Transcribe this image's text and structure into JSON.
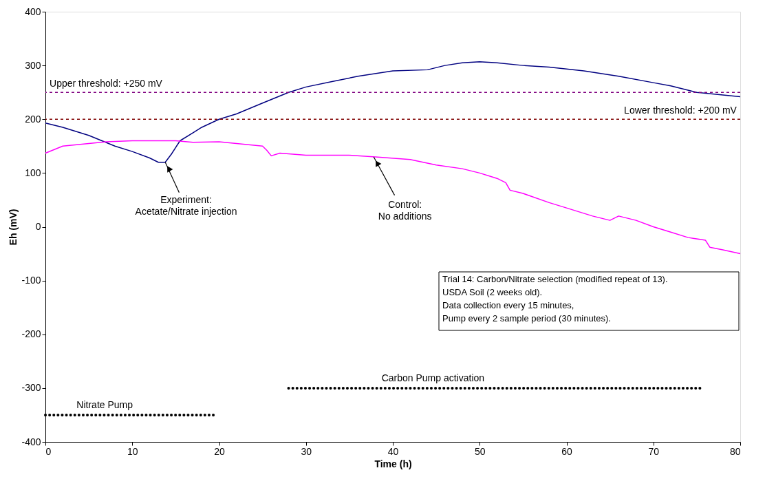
{
  "chart_data": {
    "type": "line",
    "xlabel": "Time (h)",
    "ylabel": "Eh (mV)",
    "xlim": [
      0,
      80
    ],
    "xticks": [
      0,
      10,
      20,
      30,
      40,
      50,
      60,
      70,
      80
    ],
    "ylim": [
      -400,
      400
    ],
    "yticks": [
      -400,
      -300,
      -200,
      -100,
      0,
      100,
      200,
      300,
      400
    ],
    "grid": false,
    "legend": false,
    "line_style": "solid",
    "marker": "none",
    "series": [
      {
        "color": "#000080",
        "x": [
          0,
          2,
          5,
          8,
          10,
          12,
          13,
          13.8,
          14.5,
          15.5,
          17,
          18,
          20,
          22,
          25,
          28,
          30,
          33,
          36,
          40,
          44,
          46,
          48,
          50,
          52,
          55,
          58,
          62,
          66,
          70,
          72,
          75,
          78,
          80
        ],
        "values": [
          193,
          185,
          170,
          150,
          140,
          128,
          120,
          120,
          135,
          160,
          175,
          185,
          200,
          210,
          230,
          250,
          260,
          270,
          280,
          290,
          292,
          300,
          305,
          307,
          305,
          300,
          297,
          290,
          280,
          268,
          262,
          250,
          245,
          242
        ]
      },
      {
        "color": "#ff00ff",
        "x": [
          0,
          2,
          5,
          7,
          10,
          15,
          17,
          20,
          25,
          25.5,
          26,
          27,
          30,
          35,
          38,
          42,
          45,
          48,
          50,
          52,
          53,
          53.5,
          55,
          58,
          60,
          63,
          65,
          66,
          68,
          70,
          72,
          74,
          76,
          76.5,
          78,
          80
        ],
        "values": [
          137,
          150,
          155,
          158,
          160,
          160,
          157,
          158,
          150,
          142,
          132,
          137,
          133,
          133,
          130,
          125,
          115,
          108,
          100,
          90,
          82,
          68,
          62,
          45,
          35,
          20,
          12,
          20,
          12,
          0,
          -10,
          -20,
          -25,
          -38,
          -43,
          -50
        ]
      },
      {
        "name": "Carbon Pump activation",
        "color": "#000000",
        "line_style": "dotted",
        "x": [
          28,
          75.5
        ],
        "values": [
          -300,
          -300
        ]
      },
      {
        "name": "Nitrate Pump",
        "color": "#000000",
        "line_style": "dotted",
        "x": [
          0,
          19.5
        ],
        "values": [
          -350,
          -350
        ]
      }
    ],
    "ref_lines": [
      {
        "axis": "y",
        "value": 250,
        "label": "Upper threshold: +250 mV",
        "color": "#800080",
        "line_style": "dashed"
      },
      {
        "axis": "y",
        "value": 200,
        "label": "Lower threshold: +200 mV",
        "color": "#800000",
        "line_style": "dashed"
      }
    ],
    "annotations": [
      {
        "text": "Experiment:\nAcetate/Nitrate injection",
        "x": 13.8,
        "y": 120
      },
      {
        "text": "Control:\nNo additions",
        "x": 37.8,
        "y": 130
      },
      "Trial 14: Carbon/Nitrate selection (modified repeat of 13).\nUSDA Soil (2 weeks old).\nData collection every 15 minutes,\nPump every 2 sample period (30 minutes)."
    ]
  }
}
